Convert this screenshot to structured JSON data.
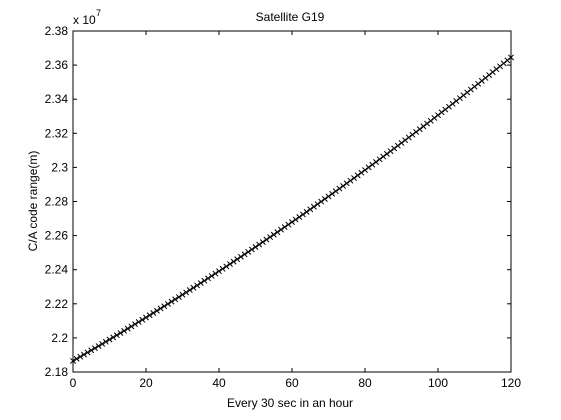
{
  "chart_data": {
    "type": "scatter",
    "title": "Satellite G19",
    "xlabel": "Every 30 sec in an hour",
    "ylabel": "C/A code range(m)",
    "xlim": [
      0,
      120
    ],
    "ylim": [
      2.18,
      2.38
    ],
    "y_multiplier_base": "x 10",
    "y_multiplier_exponent": "7",
    "x_ticks": [
      0,
      20,
      40,
      60,
      80,
      100,
      120
    ],
    "x_tick_labels": [
      "0",
      "20",
      "40",
      "60",
      "80",
      "100",
      "120"
    ],
    "y_ticks": [
      2.18,
      2.2,
      2.22,
      2.24,
      2.26,
      2.28,
      2.3,
      2.32,
      2.34,
      2.36,
      2.38
    ],
    "y_tick_labels": [
      "2.18",
      "2.2",
      "2.22",
      "2.24",
      "2.26",
      "2.28",
      "2.3",
      "2.32",
      "2.34",
      "2.36",
      "2.38"
    ],
    "grid": false,
    "marker": "x",
    "marker_color": "#000000",
    "series": [
      {
        "name": "G19",
        "x": [
          0,
          120
        ],
        "y": [
          2.1865,
          2.3645
        ],
        "curve": "quadratic",
        "curvature_c": 2.1e-06,
        "n_samples": 121
      }
    ]
  }
}
